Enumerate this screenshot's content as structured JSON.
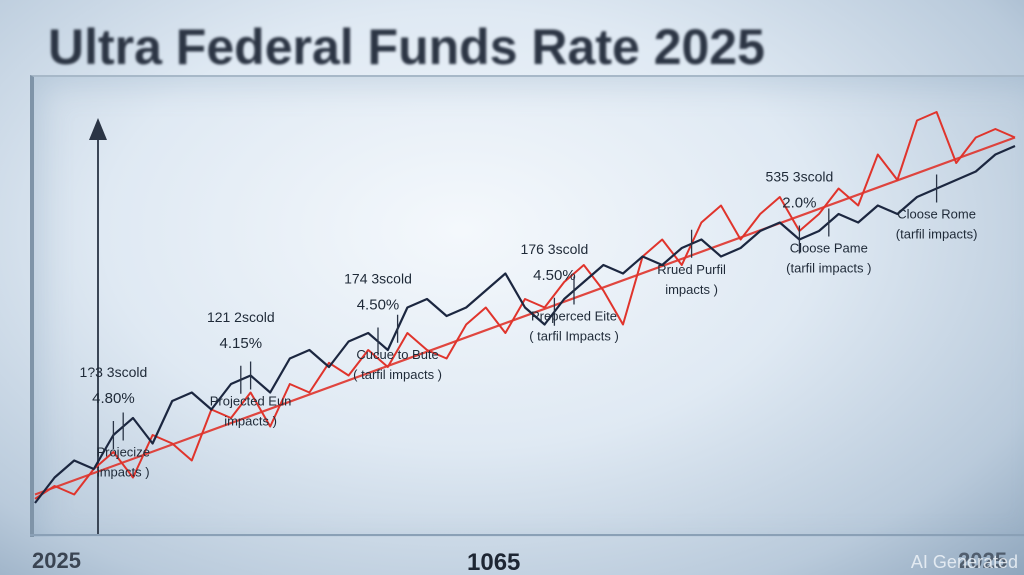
{
  "chart_data": {
    "type": "line",
    "title": "Ultra Federal  Funds Rate 2025",
    "xlabel": "",
    "ylabel": "",
    "x_tick_labels": [
      "2025",
      "1065",
      "2025"
    ],
    "grid": false,
    "legend": "none",
    "series": [
      {
        "color": "#e0342c",
        "x": [
          0,
          2,
          4,
          6,
          8,
          10,
          12,
          14,
          16,
          18,
          20,
          22,
          24,
          26,
          28,
          30,
          32,
          34,
          36,
          38,
          40,
          42,
          44,
          46,
          48,
          50,
          52,
          54,
          56,
          58,
          60,
          62,
          64,
          66,
          68,
          70,
          72,
          74,
          76,
          78,
          80,
          82,
          84,
          86,
          88,
          90,
          92,
          94,
          96,
          98,
          100
        ],
        "values": [
          0.05,
          0.08,
          0.06,
          0.12,
          0.16,
          0.1,
          0.2,
          0.18,
          0.14,
          0.26,
          0.24,
          0.3,
          0.22,
          0.32,
          0.3,
          0.37,
          0.34,
          0.4,
          0.36,
          0.44,
          0.4,
          0.38,
          0.46,
          0.5,
          0.44,
          0.52,
          0.5,
          0.56,
          0.6,
          0.54,
          0.46,
          0.62,
          0.66,
          0.6,
          0.7,
          0.74,
          0.66,
          0.72,
          0.76,
          0.68,
          0.72,
          0.78,
          0.74,
          0.86,
          0.8,
          0.94,
          0.96,
          0.84,
          0.9,
          0.92,
          0.9
        ]
      },
      {
        "color": "#1c2740",
        "x": [
          0,
          2,
          4,
          6,
          8,
          10,
          12,
          14,
          16,
          18,
          20,
          22,
          24,
          26,
          28,
          30,
          32,
          34,
          36,
          38,
          40,
          42,
          44,
          46,
          48,
          50,
          52,
          54,
          56,
          58,
          60,
          62,
          64,
          66,
          68,
          70,
          72,
          74,
          76,
          78,
          80,
          82,
          84,
          86,
          88,
          90,
          92,
          94,
          96,
          98,
          100
        ],
        "values": [
          0.04,
          0.1,
          0.14,
          0.12,
          0.2,
          0.24,
          0.18,
          0.28,
          0.3,
          0.26,
          0.32,
          0.34,
          0.3,
          0.38,
          0.4,
          0.36,
          0.42,
          0.44,
          0.4,
          0.5,
          0.52,
          0.48,
          0.5,
          0.54,
          0.58,
          0.5,
          0.46,
          0.52,
          0.56,
          0.6,
          0.58,
          0.62,
          0.6,
          0.64,
          0.66,
          0.62,
          0.64,
          0.68,
          0.7,
          0.66,
          0.68,
          0.72,
          0.7,
          0.74,
          0.72,
          0.76,
          0.78,
          0.8,
          0.82,
          0.86,
          0.88
        ]
      }
    ],
    "annotations": [
      {
        "x": 8,
        "lines": [
          "1?3 3scold",
          "4.80%"
        ],
        "side": "above"
      },
      {
        "x": 21,
        "lines": [
          "121 2scold",
          "4.15%"
        ],
        "side": "above"
      },
      {
        "x": 35,
        "lines": [
          "174 3scold",
          "4.50%"
        ],
        "side": "above"
      },
      {
        "x": 53,
        "lines": [
          "176 3scold",
          "4.50%"
        ],
        "side": "above"
      },
      {
        "x": 78,
        "lines": [
          "535 3scold",
          "2.0%"
        ],
        "side": "above"
      },
      {
        "x": 22,
        "lines": [
          "Projected Eun",
          "impacts )"
        ],
        "side": "below"
      },
      {
        "x": 37,
        "lines": [
          "Cucue to Bute",
          "( tarfil impacts )"
        ],
        "side": "below"
      },
      {
        "x": 55,
        "lines": [
          "Preperced Eite",
          "( tarfil Impacts )"
        ],
        "side": "below"
      },
      {
        "x": 67,
        "lines": [
          "Rrued Purfil",
          "impacts )"
        ],
        "side": "below"
      },
      {
        "x": 81,
        "lines": [
          "Cloose Pame",
          "(tarfil impacts )"
        ],
        "side": "below"
      },
      {
        "x": 92,
        "lines": [
          "Cloose Rome",
          "(tarfil impacts)"
        ],
        "side": "below"
      },
      {
        "x": 9,
        "lines": [
          "Projecize",
          "impacts )"
        ],
        "side": "below"
      }
    ]
  },
  "watermark": "AI Generated"
}
